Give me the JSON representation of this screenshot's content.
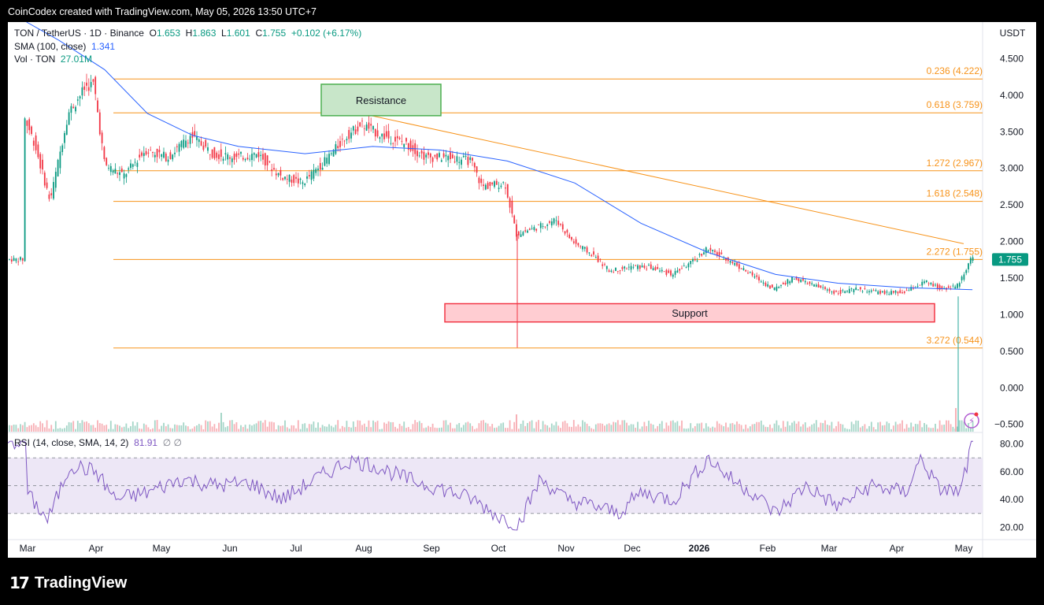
{
  "header": {
    "created_by": "CoinCodex created with TradingView.com, May 05, 2026 13:50 UTC+7"
  },
  "footer": {
    "logo_mark": "17",
    "logo_word": "TradingView"
  },
  "legend": {
    "symbol": "TON / TetherUS · 1D · Binance",
    "o_label": "O",
    "o_value": "1.653",
    "h_label": "H",
    "h_value": "1.863",
    "l_label": "L",
    "l_value": "1.601",
    "c_label": "C",
    "c_value": "1.755",
    "change": "+0.102 (+6.17%)",
    "sma_label": "SMA (100, close)",
    "sma_value": "1.341",
    "vol_label": "Vol · TON",
    "vol_value": "27.01M",
    "rsi_label": "RSI (14, close, SMA, 14, 2)",
    "rsi_value": "81.91",
    "rsi_icons": "∅ ∅"
  },
  "colors": {
    "up": "#089981",
    "down": "#f23645",
    "sma": "#2962ff",
    "fib": "#f7931a",
    "rsi": "#7e57c2",
    "rsi_band": "#ede7f6"
  },
  "chart_data": {
    "type": "candlestick",
    "currency_label": "USDT",
    "y_ticks": [
      "4.500",
      "4.000",
      "3.500",
      "3.000",
      "2.500",
      "2.000",
      "1.500",
      "1.000",
      "0.500",
      "0.000",
      "−0.500"
    ],
    "y_range": [
      -0.6,
      5.0
    ],
    "x_labels": [
      "Mar",
      "Apr",
      "May",
      "Jun",
      "Jul",
      "Aug",
      "Sep",
      "Oct",
      "Nov",
      "Dec",
      "2026",
      "Feb",
      "Mar",
      "Apr",
      "May"
    ],
    "last_price": "1.755",
    "fib_levels": [
      {
        "label": "0.236 (4.222)",
        "value": 4.222
      },
      {
        "label": "0.618 (3.759)",
        "value": 3.759
      },
      {
        "label": "1.272 (2.967)",
        "value": 2.967
      },
      {
        "label": "1.618 (2.548)",
        "value": 2.548
      },
      {
        "label": "2.272 (1.755)",
        "value": 1.755
      },
      {
        "label": "3.272 (0.544)",
        "value": 0.544
      }
    ],
    "zones": [
      {
        "label": "Resistance",
        "top": 4.15,
        "bottom": 3.72
      },
      {
        "label": "Support",
        "top": 1.15,
        "bottom": 0.9
      }
    ],
    "trendline": {
      "from": [
        "Aug",
        3.78
      ],
      "to": [
        "May",
        1.97
      ]
    },
    "price_path": [
      [
        "Feb 25",
        3.7
      ],
      [
        "Mar 05",
        3.35
      ],
      [
        "Mar 12",
        2.55
      ],
      [
        "Mar 20",
        3.75
      ],
      [
        "Mar 28",
        4.12
      ],
      [
        "Apr 01",
        4.15
      ],
      [
        "Apr 06",
        3.05
      ],
      [
        "Apr 15",
        2.9
      ],
      [
        "Apr 25",
        3.25
      ],
      [
        "May 05",
        3.15
      ],
      [
        "May 15",
        3.45
      ],
      [
        "May 25",
        3.2
      ],
      [
        "Jun 05",
        3.15
      ],
      [
        "Jun 15",
        3.2
      ],
      [
        "Jun 25",
        2.9
      ],
      [
        "Jul 05",
        2.8
      ],
      [
        "Jul 15",
        3.1
      ],
      [
        "Jul 25",
        3.45
      ],
      [
        "Aug 01",
        3.6
      ],
      [
        "Aug 10",
        3.45
      ],
      [
        "Aug 20",
        3.35
      ],
      [
        "Aug 30",
        3.15
      ],
      [
        "Sep 10",
        3.15
      ],
      [
        "Sep 20",
        3.1
      ],
      [
        "Sep 25",
        2.75
      ],
      [
        "Oct 05",
        2.8
      ],
      [
        "Oct 10",
        2.1
      ],
      [
        "Oct 20",
        2.2
      ],
      [
        "Oct 28",
        2.3
      ],
      [
        "Nov 05",
        2.0
      ],
      [
        "Nov 15",
        1.8
      ],
      [
        "Nov 22",
        1.6
      ],
      [
        "Dec 01",
        1.65
      ],
      [
        "Dec 10",
        1.65
      ],
      [
        "Dec 20",
        1.55
      ],
      [
        "Dec 31",
        1.75
      ],
      [
        "Jan 05",
        1.9
      ],
      [
        "Jan 15",
        1.75
      ],
      [
        "Jan 25",
        1.55
      ],
      [
        "Feb 05",
        1.35
      ],
      [
        "Feb 15",
        1.5
      ],
      [
        "Feb 25",
        1.4
      ],
      [
        "Mar 05",
        1.3
      ],
      [
        "Mar 15",
        1.35
      ],
      [
        "Mar 25",
        1.3
      ],
      [
        "Apr 05",
        1.3
      ],
      [
        "Apr 15",
        1.45
      ],
      [
        "Apr 22",
        1.35
      ],
      [
        "Apr 30",
        1.4
      ],
      [
        "May 05",
        1.755
      ]
    ],
    "sma_path": [
      [
        "Feb 25",
        5.0
      ],
      [
        "Mar 15",
        4.75
      ],
      [
        "Apr 05",
        4.35
      ],
      [
        "Apr 25",
        3.75
      ],
      [
        "May 15",
        3.45
      ],
      [
        "Jun 05",
        3.3
      ],
      [
        "Jul 05",
        3.2
      ],
      [
        "Aug 05",
        3.3
      ],
      [
        "Sep 05",
        3.25
      ],
      [
        "Oct 05",
        3.1
      ],
      [
        "Nov 05",
        2.8
      ],
      [
        "Dec 05",
        2.25
      ],
      [
        "Jan 05",
        1.85
      ],
      [
        "Feb 05",
        1.55
      ],
      [
        "Mar 05",
        1.43
      ],
      [
        "Apr 05",
        1.37
      ],
      [
        "May 05",
        1.341
      ]
    ],
    "rsi": {
      "ticks": [
        "80.00",
        "60.00",
        "40.00",
        "20.00"
      ],
      "range": [
        14,
        86
      ],
      "bands": [
        70,
        50,
        30
      ],
      "path": [
        [
          "Feb 25",
          45
        ],
        [
          "Mar 10",
          25
        ],
        [
          "Mar 20",
          65
        ],
        [
          "Apr 01",
          60
        ],
        [
          "Apr 10",
          40
        ],
        [
          "Apr 25",
          45
        ],
        [
          "May 10",
          55
        ],
        [
          "May 25",
          50
        ],
        [
          "Jun 10",
          52
        ],
        [
          "Jun 25",
          40
        ],
        [
          "Jul 10",
          55
        ],
        [
          "Jul 25",
          68
        ],
        [
          "Aug 05",
          65
        ],
        [
          "Aug 20",
          55
        ],
        [
          "Sep 05",
          48
        ],
        [
          "Sep 20",
          40
        ],
        [
          "Oct 01",
          28
        ],
        [
          "Oct 10",
          22
        ],
        [
          "Oct 20",
          55
        ],
        [
          "Nov 01",
          40
        ],
        [
          "Nov 15",
          35
        ],
        [
          "Nov 25",
          30
        ],
        [
          "Dec 05",
          45
        ],
        [
          "Dec 20",
          40
        ],
        [
          "Jan 05",
          70
        ],
        [
          "Jan 15",
          55
        ],
        [
          "Jan 25",
          45
        ],
        [
          "Feb 05",
          30
        ],
        [
          "Feb 20",
          50
        ],
        [
          "Mar 05",
          35
        ],
        [
          "Mar 20",
          50
        ],
        [
          "Apr 05",
          45
        ],
        [
          "Apr 12",
          70
        ],
        [
          "Apr 20",
          48
        ],
        [
          "Apr 30",
          45
        ],
        [
          "May 05",
          81.91
        ]
      ]
    }
  }
}
